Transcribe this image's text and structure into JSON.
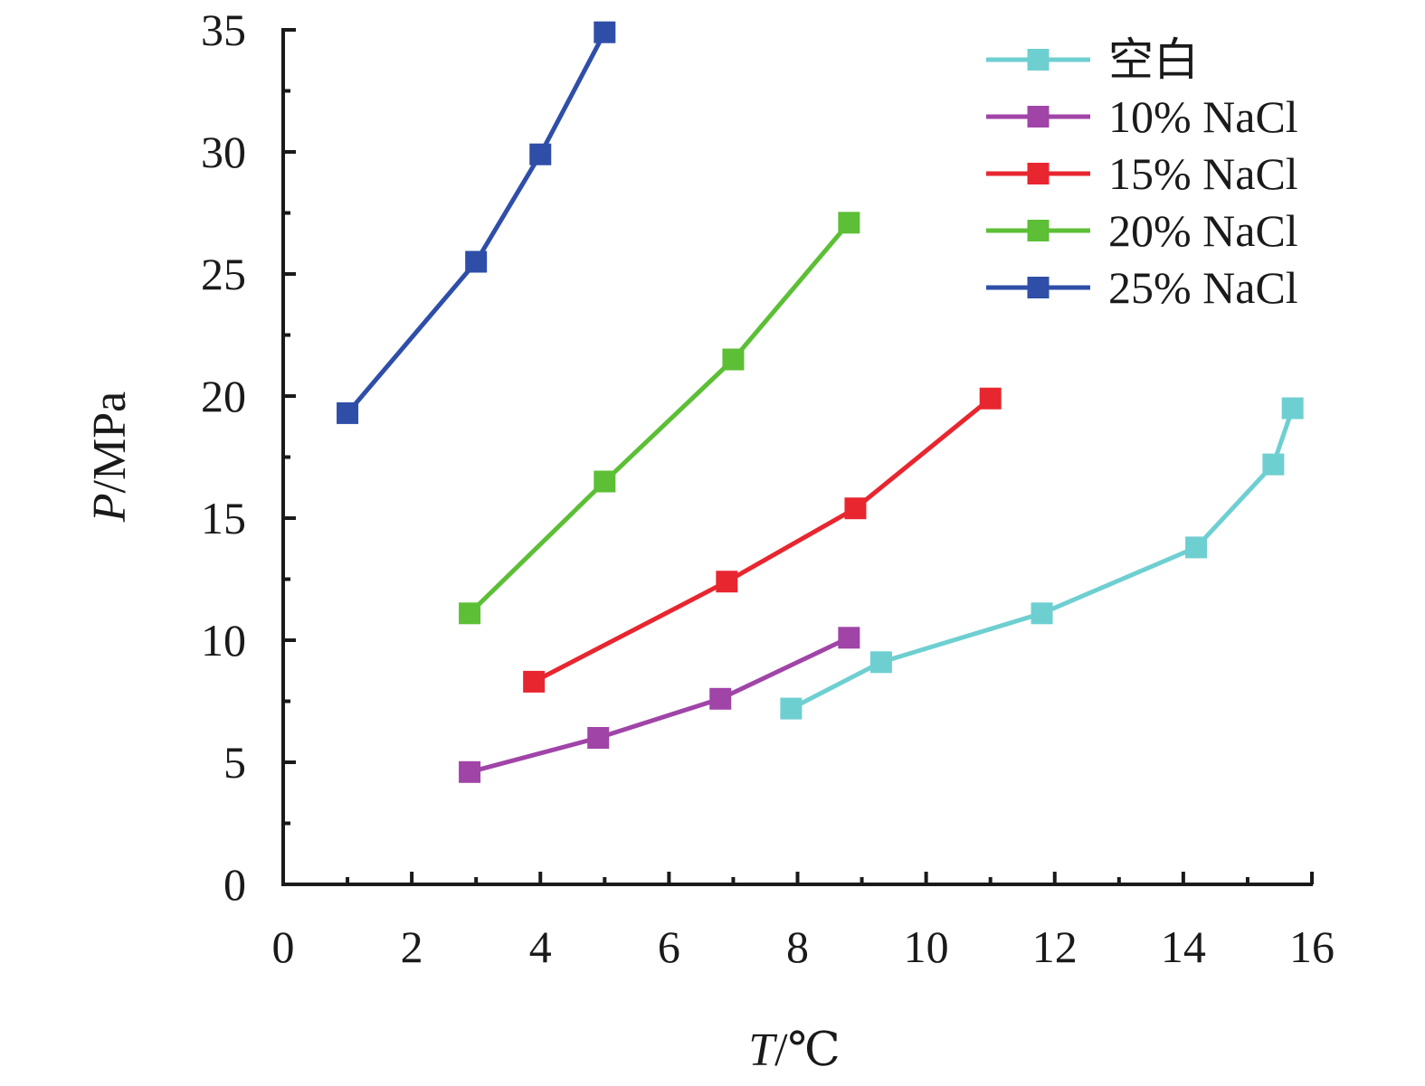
{
  "chart_data": {
    "type": "line",
    "xlabel": {
      "var": "T",
      "unit": "/℃"
    },
    "ylabel": {
      "var": "P",
      "unit": "/MPa"
    },
    "xlim": [
      0,
      16
    ],
    "ylim": [
      0,
      35
    ],
    "xticks": [
      0,
      2,
      4,
      6,
      8,
      10,
      12,
      14,
      16
    ],
    "yticks": [
      0,
      5,
      10,
      15,
      20,
      25,
      30,
      35
    ],
    "x_minor_step": 1,
    "y_minor_step": 2.5,
    "legend_position": "top-right",
    "marker": "square",
    "series": [
      {
        "name": "空白",
        "color": "#6ecfd1",
        "x": [
          7.9,
          9.3,
          11.8,
          14.2,
          15.4,
          15.7
        ],
        "y": [
          7.2,
          9.1,
          11.1,
          13.8,
          17.2,
          19.5
        ]
      },
      {
        "name": "10% NaCl",
        "color": "#a044a8",
        "x": [
          2.9,
          4.9,
          6.8,
          8.8
        ],
        "y": [
          4.6,
          6.0,
          7.6,
          10.1
        ]
      },
      {
        "name": "15% NaCl",
        "color": "#e8262f",
        "x": [
          3.9,
          6.9,
          8.9,
          11.0
        ],
        "y": [
          8.3,
          12.4,
          15.4,
          19.9
        ]
      },
      {
        "name": "20% NaCl",
        "color": "#5cbf35",
        "x": [
          2.9,
          5.0,
          7.0,
          8.8
        ],
        "y": [
          11.1,
          16.5,
          21.5,
          27.1
        ]
      },
      {
        "name": "25% NaCl",
        "color": "#2e4ea8",
        "x": [
          1.0,
          3.0,
          4.0,
          5.0
        ],
        "y": [
          19.3,
          25.5,
          29.9,
          34.9
        ]
      }
    ]
  }
}
